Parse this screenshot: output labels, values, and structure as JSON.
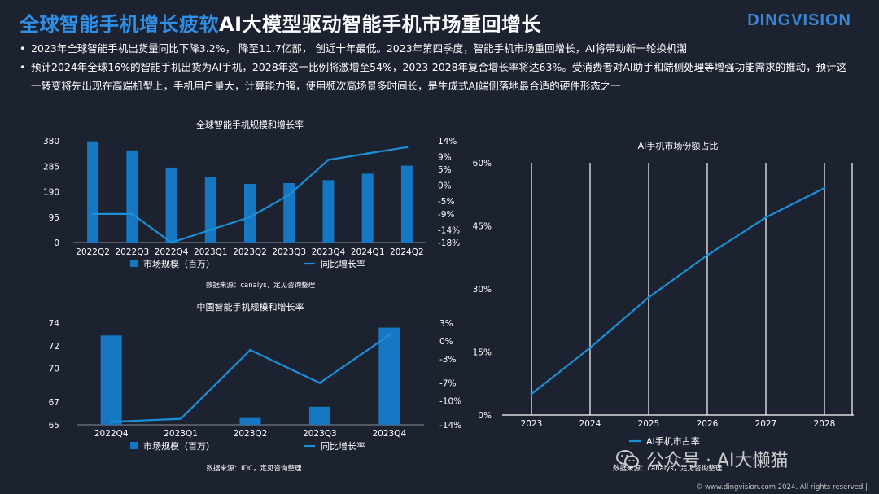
{
  "header": {
    "title_accent": "全球智能手机增长疲软",
    "title_rest": "AI大模型驱动智能手机市场重回增长",
    "logo": "DINGVISION"
  },
  "bullets": [
    "2023年全球智能手机出货量同比下降3.2%， 降至11.7亿部， 创近十年最低。2023年第四季度，智能手机市场重回增长，AI将带动新一轮换机潮",
    "预计2024年全球16%的智能手机出货为AI手机，2028年这一比例将激增至54%，2023-2028年复合增长率将达63%。受消费者对AI助手和端侧处理等增强功能需求的推动，预计这一转变将先出现在高端机型上，手机用户量大，计算能力强，使用频次高场景多时间长，是生成式AI端侧落地最合适的硬件形态之一"
  ],
  "colors": {
    "bar": "#1677c2",
    "line": "#1c8fd6",
    "accent": "#2f8fe6",
    "background": "#1c2230"
  },
  "chart_data": [
    {
      "id": "global",
      "type": "bar+line",
      "title": "全球智能手机规模和增长率",
      "categories": [
        "2022Q2",
        "2022Q3",
        "2022Q4",
        "2023Q1",
        "2023Q2",
        "2023Q3",
        "2023Q4",
        "2024Q1",
        "2024Q2"
      ],
      "series": [
        {
          "name": "市场规模（百万）",
          "type": "bar",
          "axis": "left",
          "values": [
            378,
            344,
            280,
            243,
            219,
            222,
            233,
            257,
            287
          ]
        },
        {
          "name": "同比增长率",
          "type": "line",
          "axis": "right",
          "values": [
            -9,
            -9,
            -18,
            -14,
            -10,
            -3,
            8,
            10,
            12
          ]
        }
      ],
      "y_left": {
        "ticks": [
          0,
          95,
          190,
          285,
          380
        ],
        "labels": [
          "0",
          "95",
          "190",
          "285",
          "380"
        ],
        "range": [
          0,
          380
        ]
      },
      "y_right": {
        "ticks": [
          -18,
          -14,
          -9,
          -5,
          0,
          5,
          9,
          14
        ],
        "labels": [
          "-18%",
          "-14%",
          "-9%",
          "-5%",
          "0%",
          "5%",
          "9%",
          "14%"
        ],
        "range": [
          -18,
          14
        ]
      },
      "source": "数据来源：canalys，定见咨询整理",
      "legend": "bottom"
    },
    {
      "id": "china",
      "type": "bar+line",
      "title": "中国智能手机规模和增长率",
      "categories": [
        "2022Q4",
        "2023Q1",
        "2023Q2",
        "2023Q3",
        "2023Q4"
      ],
      "series": [
        {
          "name": "市场规模（百万）",
          "type": "bar",
          "axis": "left",
          "values": [
            72.9,
            64.2,
            65.6,
            66.6,
            73.6
          ]
        },
        {
          "name": "同比增长率",
          "type": "line",
          "axis": "right",
          "values": [
            -13.5,
            -13,
            -1.5,
            -7,
            1
          ]
        }
      ],
      "y_left": {
        "ticks": [
          65,
          67,
          70,
          72,
          74
        ],
        "labels": [
          "65",
          "67",
          "70",
          "72",
          "74"
        ],
        "range": [
          65,
          74
        ]
      },
      "y_right": {
        "ticks": [
          -14,
          -10,
          -7,
          -3,
          0,
          3
        ],
        "labels": [
          "-14%",
          "-10%",
          "-7%",
          "-3%",
          "0%",
          "3%"
        ],
        "range": [
          -14,
          3
        ]
      },
      "source": "数据来源：IDC，定见咨询整理",
      "legend": "bottom"
    },
    {
      "id": "ai",
      "type": "line",
      "title": "AI手机市场份额占比",
      "categories": [
        "2023",
        "2024",
        "2025",
        "2026",
        "2027",
        "2028"
      ],
      "series": [
        {
          "name": "AI手机市占率",
          "type": "line",
          "axis": "left",
          "values": [
            5,
            16,
            28,
            38,
            47,
            54
          ]
        }
      ],
      "y_left": {
        "ticks": [
          0,
          15,
          30,
          45,
          60
        ],
        "labels": [
          "0%",
          "15%",
          "30%",
          "45%",
          "60%"
        ],
        "range": [
          0,
          60
        ]
      },
      "grid": true,
      "source": "数据来源：canalys，定见咨询整理",
      "legend": "bottom"
    }
  ],
  "watermark": {
    "text": "公众号 · AI大懒猫"
  },
  "footer": {
    "copyright": "© www.dingvision.com 2024. All rights reserved |"
  }
}
